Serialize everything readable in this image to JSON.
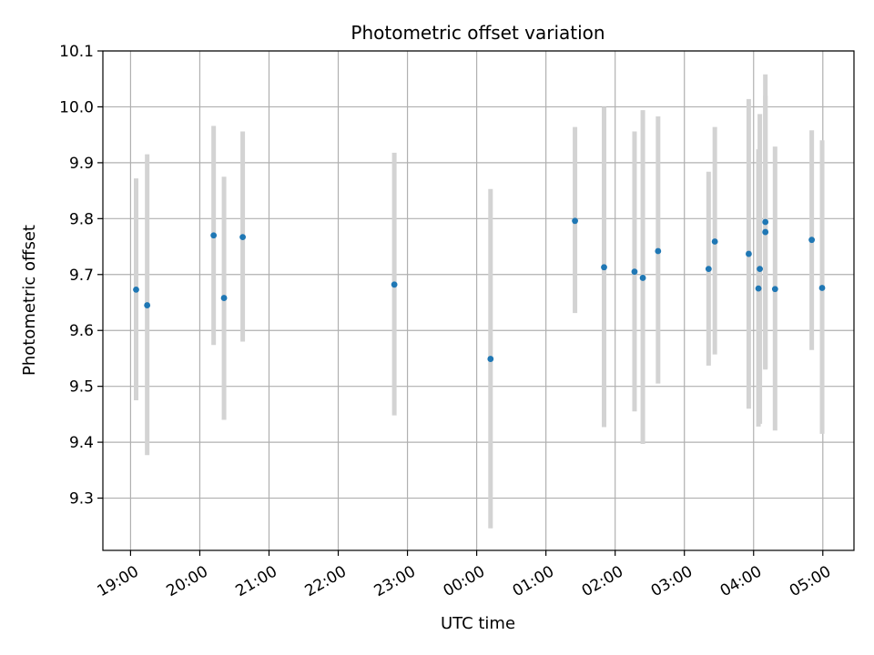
{
  "chart_data": {
    "type": "scatter",
    "title": "Photometric offset variation",
    "xlabel": "UTC time",
    "ylabel": "Photometric offset",
    "ylim": [
      9.2065,
      10.1
    ],
    "xlim_hours": [
      18.6,
      29.45
    ],
    "grid": true,
    "colors": {
      "point": "#1f77b4",
      "errorbar": "#d3d3d3",
      "grid": "#b0b0b0",
      "axis": "#000000"
    },
    "y_ticks": [
      {
        "value": 9.3,
        "label": "9.3"
      },
      {
        "value": 9.4,
        "label": "9.4"
      },
      {
        "value": 9.5,
        "label": "9.5"
      },
      {
        "value": 9.6,
        "label": "9.6"
      },
      {
        "value": 9.7,
        "label": "9.7"
      },
      {
        "value": 9.8,
        "label": "9.8"
      },
      {
        "value": 9.9,
        "label": "9.9"
      },
      {
        "value": 10.0,
        "label": "10.0"
      },
      {
        "value": 10.1,
        "label": "10.1"
      }
    ],
    "x_ticks": [
      {
        "value": 19,
        "label": "19:00"
      },
      {
        "value": 20,
        "label": "20:00"
      },
      {
        "value": 21,
        "label": "21:00"
      },
      {
        "value": 22,
        "label": "22:00"
      },
      {
        "value": 23,
        "label": "23:00"
      },
      {
        "value": 24,
        "label": "00:00"
      },
      {
        "value": 25,
        "label": "01:00"
      },
      {
        "value": 26,
        "label": "02:00"
      },
      {
        "value": 27,
        "label": "03:00"
      },
      {
        "value": 28,
        "label": "04:00"
      },
      {
        "value": 29,
        "label": "05:00"
      }
    ],
    "points": [
      {
        "x": 19.08,
        "y": 9.673,
        "ylow": 9.475,
        "yhigh": 9.872
      },
      {
        "x": 19.24,
        "y": 9.645,
        "ylow": 9.377,
        "yhigh": 9.915
      },
      {
        "x": 20.2,
        "y": 9.77,
        "ylow": 9.574,
        "yhigh": 9.966
      },
      {
        "x": 20.35,
        "y": 9.658,
        "ylow": 9.44,
        "yhigh": 9.875
      },
      {
        "x": 20.62,
        "y": 9.767,
        "ylow": 9.58,
        "yhigh": 9.956
      },
      {
        "x": 22.81,
        "y": 9.682,
        "ylow": 9.448,
        "yhigh": 9.918
      },
      {
        "x": 24.2,
        "y": 9.549,
        "ylow": 9.246,
        "yhigh": 9.853
      },
      {
        "x": 25.42,
        "y": 9.796,
        "ylow": 9.631,
        "yhigh": 9.964
      },
      {
        "x": 25.84,
        "y": 9.713,
        "ylow": 9.427,
        "yhigh": 10.0
      },
      {
        "x": 26.28,
        "y": 9.705,
        "ylow": 9.455,
        "yhigh": 9.956
      },
      {
        "x": 26.4,
        "y": 9.694,
        "ylow": 9.397,
        "yhigh": 9.994
      },
      {
        "x": 26.62,
        "y": 9.742,
        "ylow": 9.505,
        "yhigh": 9.983
      },
      {
        "x": 27.35,
        "y": 9.71,
        "ylow": 9.537,
        "yhigh": 9.884
      },
      {
        "x": 27.44,
        "y": 9.759,
        "ylow": 9.557,
        "yhigh": 9.964
      },
      {
        "x": 27.93,
        "y": 9.737,
        "ylow": 9.46,
        "yhigh": 10.014
      },
      {
        "x": 28.07,
        "y": 9.675,
        "ylow": 9.428,
        "yhigh": 9.924
      },
      {
        "x": 28.09,
        "y": 9.71,
        "ylow": 9.433,
        "yhigh": 9.987
      },
      {
        "x": 28.17,
        "y": 9.776,
        "ylow": 9.532,
        "yhigh": 10.02
      },
      {
        "x": 28.17,
        "y": 9.794,
        "ylow": 9.53,
        "yhigh": 10.058
      },
      {
        "x": 28.31,
        "y": 9.674,
        "ylow": 9.421,
        "yhigh": 9.929
      },
      {
        "x": 28.84,
        "y": 9.762,
        "ylow": 9.565,
        "yhigh": 9.958
      },
      {
        "x": 28.99,
        "y": 9.676,
        "ylow": 9.415,
        "yhigh": 9.94
      }
    ]
  }
}
